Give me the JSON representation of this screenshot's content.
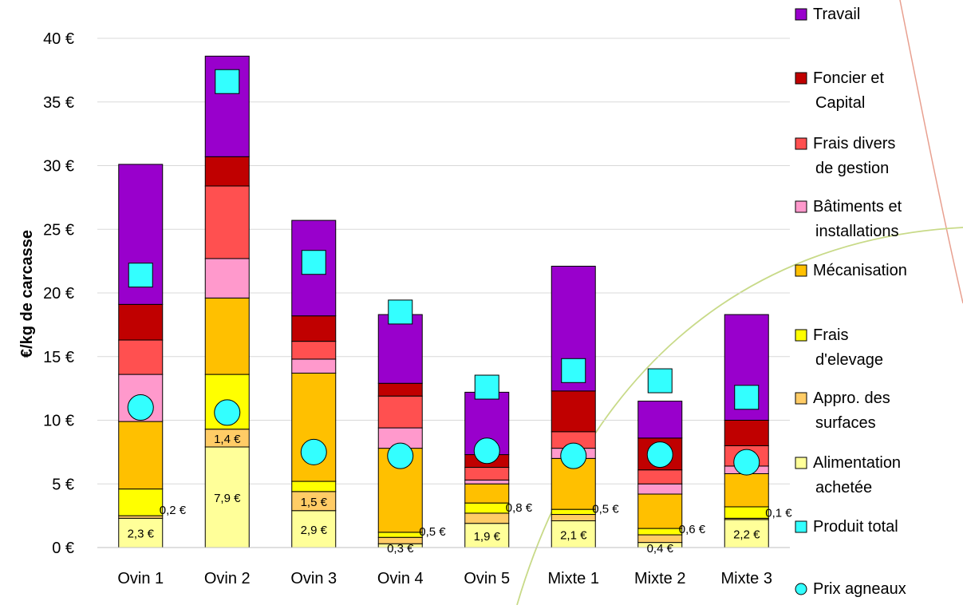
{
  "chart_data": {
    "type": "bar",
    "stacked": true,
    "ylabel": "€/kg de carcasse",
    "ylim": [
      0,
      40
    ],
    "yticks": [
      "0 €",
      "5 €",
      "10 €",
      "15 €",
      "20 €",
      "25 €",
      "30 €",
      "35 €",
      "40 €"
    ],
    "grid": true,
    "legend_position": "right",
    "categories": [
      "Ovin 1",
      "Ovin 2",
      "Ovin 3",
      "Ovin 4",
      "Ovin 5",
      "Mixte 1",
      "Mixte 2",
      "Mixte 3"
    ],
    "series": [
      {
        "name": "Alimentation achetée",
        "color": "#FFFF99",
        "values": [
          2.3,
          7.9,
          2.9,
          0.3,
          1.9,
          2.1,
          0.4,
          2.2
        ]
      },
      {
        "name": "Appro. des surfaces",
        "color": "#FFCC66",
        "values": [
          0.2,
          1.4,
          1.5,
          0.5,
          0.8,
          0.5,
          0.6,
          0.1
        ]
      },
      {
        "name": "Frais d'elevage",
        "color": "#FFFF00",
        "values": [
          2.1,
          4.3,
          0.8,
          0.4,
          0.8,
          0.4,
          0.5,
          0.9
        ]
      },
      {
        "name": "Mécanisation",
        "color": "#FFC000",
        "values": [
          5.3,
          6.0,
          8.5,
          6.6,
          1.5,
          4.0,
          2.7,
          2.6
        ]
      },
      {
        "name": "Bâtiments et installations",
        "color": "#FF99CC",
        "values": [
          3.7,
          3.1,
          1.1,
          1.6,
          0.3,
          0.8,
          0.8,
          0.6
        ]
      },
      {
        "name": "Frais divers de gestion",
        "color": "#FF5050",
        "values": [
          2.7,
          5.7,
          1.4,
          2.5,
          1.0,
          1.3,
          1.1,
          1.6
        ]
      },
      {
        "name": "Foncier et Capital",
        "color": "#C00000",
        "values": [
          2.8,
          2.3,
          2.0,
          1.0,
          1.0,
          3.2,
          2.5,
          2.0
        ]
      },
      {
        "name": "Travail",
        "color": "#9900CC",
        "values": [
          11.0,
          7.9,
          7.5,
          5.4,
          4.9,
          9.8,
          2.9,
          8.3
        ]
      }
    ],
    "markers": [
      {
        "name": "Produit total",
        "shape": "square",
        "color": "#33FFFF",
        "values": [
          21.4,
          36.6,
          22.4,
          18.5,
          12.6,
          13.9,
          13.1,
          11.8
        ]
      },
      {
        "name": "Prix agneaux",
        "shape": "circle",
        "color": "#33FFFF",
        "values": [
          11.0,
          10.6,
          7.5,
          7.2,
          7.6,
          7.2,
          7.3,
          6.7
        ]
      }
    ],
    "data_labels": [
      {
        "category": "Ovin 1",
        "series": "Alimentation achetée",
        "text": "2,3 €"
      },
      {
        "category": "Ovin 1",
        "series": "Appro. des surfaces",
        "text": "0,2 €"
      },
      {
        "category": "Ovin 2",
        "series": "Alimentation achetée",
        "text": "7,9 €"
      },
      {
        "category": "Ovin 2",
        "series": "Appro. des surfaces",
        "text": "1,4 €"
      },
      {
        "category": "Ovin 3",
        "series": "Alimentation achetée",
        "text": "2,9 €"
      },
      {
        "category": "Ovin 3",
        "series": "Appro. des surfaces",
        "text": "1,5 €"
      },
      {
        "category": "Ovin 4",
        "series": "Alimentation achetée",
        "text": "0,3 €"
      },
      {
        "category": "Ovin 4",
        "series": "Appro. des surfaces",
        "text": "0,5 €"
      },
      {
        "category": "Ovin 5",
        "series": "Alimentation achetée",
        "text": "1,9 €"
      },
      {
        "category": "Ovin 5",
        "series": "Appro. des surfaces",
        "text": "0,8 €"
      },
      {
        "category": "Mixte 1",
        "series": "Alimentation achetée",
        "text": "2,1 €"
      },
      {
        "category": "Mixte 1",
        "series": "Appro. des surfaces",
        "text": "0,5 €"
      },
      {
        "category": "Mixte 2",
        "series": "Alimentation achetée",
        "text": "0,4 €"
      },
      {
        "category": "Mixte 2",
        "series": "Appro. des surfaces",
        "text": "0,6 €"
      },
      {
        "category": "Mixte 3",
        "series": "Alimentation achetée",
        "text": "2,2 €"
      },
      {
        "category": "Mixte 3",
        "series": "Appro. des surfaces",
        "text": "0,1 €"
      }
    ],
    "legend": [
      {
        "lines": [
          "Travail"
        ],
        "color": "#9900CC",
        "shape": "square"
      },
      {
        "lines": [
          "Foncier et",
          "Capital"
        ],
        "color": "#C00000",
        "shape": "square"
      },
      {
        "lines": [
          "Frais divers",
          "de gestion"
        ],
        "color": "#FF5050",
        "shape": "square"
      },
      {
        "lines": [
          "Bâtiments et",
          "installations"
        ],
        "color": "#FF99CC",
        "shape": "square"
      },
      {
        "lines": [
          "Mécanisation"
        ],
        "color": "#FFC000",
        "shape": "square"
      },
      {
        "lines": [
          "Frais",
          "d'elevage"
        ],
        "color": "#FFFF00",
        "shape": "square"
      },
      {
        "lines": [
          "Appro. des",
          "surfaces"
        ],
        "color": "#FFCC66",
        "shape": "square"
      },
      {
        "lines": [
          "Alimentation",
          "achetée"
        ],
        "color": "#FFFF99",
        "shape": "square"
      },
      {
        "lines": [
          "Produit total"
        ],
        "color": "#33FFFF",
        "shape": "square"
      },
      {
        "lines": [
          "Prix agneaux"
        ],
        "color": "#33FFFF",
        "shape": "circle"
      }
    ]
  }
}
